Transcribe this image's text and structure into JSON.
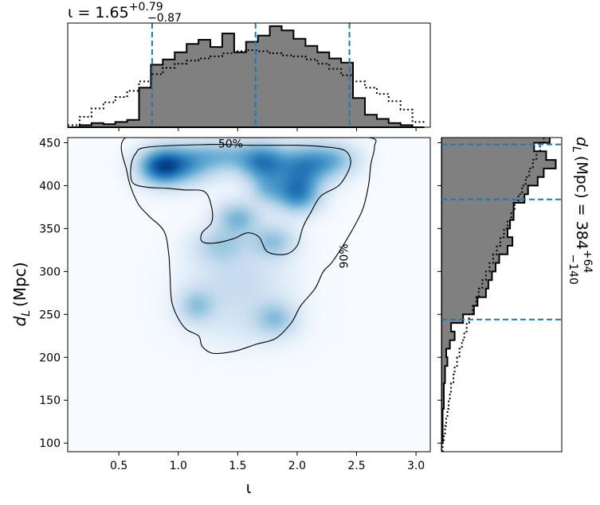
{
  "chart_data": [
    {
      "type": "heatmap",
      "panel": "joint",
      "xlabel": "ι",
      "ylabel_symbol": "d",
      "ylabel_sub": "L",
      "ylabel_unit": "(Mpc)",
      "xlim": [
        0.07,
        3.12
      ],
      "ylim": [
        90,
        456
      ],
      "xticks": [
        0.5,
        1.0,
        1.5,
        2.0,
        2.5,
        3.0
      ],
      "xtick_labels": [
        "0.5",
        "1.0",
        "1.5",
        "2.0",
        "2.5",
        "3.0"
      ],
      "yticks": [
        100,
        150,
        200,
        250,
        300,
        350,
        400,
        450
      ],
      "ytick_labels": [
        "100",
        "150",
        "200",
        "250",
        "300",
        "350",
        "400",
        "450"
      ],
      "colormap": "Blues",
      "density_peaks": [
        {
          "x": 0.85,
          "y": 422,
          "sigma_x": 0.13,
          "sigma_y": 14,
          "weight": 1.0
        },
        {
          "x": 1.05,
          "y": 425,
          "sigma_x": 0.18,
          "sigma_y": 16,
          "weight": 0.7
        },
        {
          "x": 1.4,
          "y": 435,
          "sigma_x": 0.2,
          "sigma_y": 13,
          "weight": 0.5
        },
        {
          "x": 1.72,
          "y": 426,
          "sigma_x": 0.14,
          "sigma_y": 16,
          "weight": 0.9
        },
        {
          "x": 2.05,
          "y": 422,
          "sigma_x": 0.15,
          "sigma_y": 17,
          "weight": 0.8
        },
        {
          "x": 2.3,
          "y": 430,
          "sigma_x": 0.15,
          "sigma_y": 14,
          "weight": 0.55
        },
        {
          "x": 2.0,
          "y": 390,
          "sigma_x": 0.13,
          "sigma_y": 15,
          "weight": 0.9
        },
        {
          "x": 1.5,
          "y": 362,
          "sigma_x": 0.13,
          "sigma_y": 14,
          "weight": 0.6
        },
        {
          "x": 1.8,
          "y": 335,
          "sigma_x": 0.13,
          "sigma_y": 14,
          "weight": 0.5
        },
        {
          "x": 1.35,
          "y": 330,
          "sigma_x": 0.16,
          "sigma_y": 14,
          "weight": 0.4
        },
        {
          "x": 1.5,
          "y": 290,
          "sigma_x": 0.28,
          "sigma_y": 25,
          "weight": 0.28
        },
        {
          "x": 1.75,
          "y": 395,
          "sigma_x": 0.1,
          "sigma_y": 12,
          "weight": 0.4
        },
        {
          "x": 1.15,
          "y": 260,
          "sigma_x": 0.11,
          "sigma_y": 14,
          "weight": 0.45
        },
        {
          "x": 1.82,
          "y": 245,
          "sigma_x": 0.12,
          "sigma_y": 14,
          "weight": 0.45
        },
        {
          "x": 1.55,
          "y": 240,
          "sigma_x": 0.3,
          "sigma_y": 22,
          "weight": 0.15
        }
      ],
      "contours": [
        {
          "label": "50%",
          "label_x": 1.44,
          "label_y": 448,
          "label_angle": 0,
          "points": [
            [
              0.75,
              445
            ],
            [
              1.3,
              448
            ],
            [
              1.6,
              447
            ],
            [
              2.0,
              447
            ],
            [
              2.25,
              445
            ],
            [
              2.4,
              441
            ],
            [
              2.45,
              430
            ],
            [
              2.43,
              417
            ],
            [
              2.35,
              400
            ],
            [
              2.2,
              388
            ],
            [
              2.12,
              370
            ],
            [
              2.05,
              352
            ],
            [
              2.0,
              330
            ],
            [
              1.9,
              320
            ],
            [
              1.75,
              323
            ],
            [
              1.68,
              340
            ],
            [
              1.58,
              345
            ],
            [
              1.46,
              338
            ],
            [
              1.3,
              333
            ],
            [
              1.2,
              335
            ],
            [
              1.2,
              345
            ],
            [
              1.28,
              357
            ],
            [
              1.28,
              375
            ],
            [
              1.22,
              393
            ],
            [
              1.05,
              395
            ],
            [
              0.9,
              397
            ],
            [
              0.75,
              398
            ],
            [
              0.62,
              403
            ],
            [
              0.6,
              420
            ],
            [
              0.64,
              437
            ],
            [
              0.75,
              445
            ]
          ]
        },
        {
          "label": "90%",
          "label_x": 2.4,
          "label_y": 318,
          "label_angle": -90,
          "points": [
            [
              0.57,
              457
            ],
            [
              1.2,
              456
            ],
            [
              2.0,
              456
            ],
            [
              2.6,
              456
            ],
            [
              2.65,
              445
            ],
            [
              2.62,
              425
            ],
            [
              2.6,
              400
            ],
            [
              2.55,
              372
            ],
            [
              2.45,
              345
            ],
            [
              2.3,
              312
            ],
            [
              2.22,
              300
            ],
            [
              2.15,
              280
            ],
            [
              2.03,
              260
            ],
            [
              1.95,
              240
            ],
            [
              1.82,
              222
            ],
            [
              1.65,
              215
            ],
            [
              1.5,
              208
            ],
            [
              1.38,
              205
            ],
            [
              1.28,
              205
            ],
            [
              1.2,
              213
            ],
            [
              1.17,
              225
            ],
            [
              1.05,
              235
            ],
            [
              0.95,
              262
            ],
            [
              0.93,
              298
            ],
            [
              0.92,
              320
            ],
            [
              0.88,
              347
            ],
            [
              0.75,
              365
            ],
            [
              0.65,
              382
            ],
            [
              0.57,
              415
            ],
            [
              0.57,
              457
            ]
          ]
        }
      ]
    },
    {
      "type": "bar",
      "panel": "top-marginal",
      "title_prefix": "ι = 1.65",
      "title_sup": "+0.79",
      "title_sub": "−0.87",
      "histtype": "step-filled",
      "fill_color": "#808080",
      "bin_edges": [
        0.07,
        0.17,
        0.27,
        0.37,
        0.47,
        0.57,
        0.67,
        0.77,
        0.87,
        0.97,
        1.07,
        1.17,
        1.27,
        1.37,
        1.47,
        1.57,
        1.67,
        1.77,
        1.87,
        1.97,
        2.07,
        2.17,
        2.27,
        2.37,
        2.47,
        2.57,
        2.67,
        2.77,
        2.87,
        2.97,
        3.07
      ],
      "values": [
        0.0,
        0.02,
        0.04,
        0.03,
        0.05,
        0.07,
        0.38,
        0.6,
        0.65,
        0.72,
        0.8,
        0.84,
        0.77,
        0.9,
        0.72,
        0.82,
        0.88,
        0.97,
        0.93,
        0.85,
        0.78,
        0.72,
        0.66,
        0.62,
        0.28,
        0.12,
        0.08,
        0.04,
        0.02,
        0.0
      ],
      "prior_values": [
        0.02,
        0.1,
        0.18,
        0.24,
        0.29,
        0.35,
        0.44,
        0.51,
        0.57,
        0.61,
        0.64,
        0.66,
        0.68,
        0.71,
        0.73,
        0.74,
        0.73,
        0.71,
        0.69,
        0.68,
        0.65,
        0.61,
        0.56,
        0.5,
        0.44,
        0.38,
        0.32,
        0.25,
        0.17,
        0.05
      ],
      "quantile_lines": [
        0.78,
        1.65,
        2.44
      ],
      "line_color": "#1f77b4"
    },
    {
      "type": "bar",
      "panel": "right-marginal",
      "orientation": "horizontal",
      "title_prefix": "d",
      "title_symbol_sub": "L",
      "title_unit": "(Mpc) = 384",
      "title_sup": "+64",
      "title_sub": "−140",
      "histtype": "step-filled",
      "fill_color": "#808080",
      "bin_edges": [
        90,
        100,
        110,
        120,
        130,
        140,
        150,
        160,
        170,
        180,
        190,
        200,
        210,
        220,
        230,
        240,
        250,
        260,
        270,
        280,
        290,
        300,
        310,
        320,
        330,
        340,
        350,
        360,
        370,
        380,
        390,
        400,
        410,
        420,
        430,
        440,
        450,
        460
      ],
      "values": [
        0.0,
        0.01,
        0.01,
        0.01,
        0.01,
        0.02,
        0.02,
        0.02,
        0.03,
        0.03,
        0.05,
        0.04,
        0.07,
        0.11,
        0.08,
        0.18,
        0.27,
        0.3,
        0.37,
        0.39,
        0.42,
        0.45,
        0.48,
        0.55,
        0.59,
        0.55,
        0.57,
        0.6,
        0.6,
        0.69,
        0.72,
        0.8,
        0.85,
        0.95,
        0.87,
        0.77,
        0.9
      ],
      "prior_values": [
        0.01,
        0.02,
        0.03,
        0.04,
        0.05,
        0.06,
        0.07,
        0.08,
        0.1,
        0.11,
        0.13,
        0.15,
        0.17,
        0.19,
        0.21,
        0.23,
        0.26,
        0.29,
        0.31,
        0.34,
        0.37,
        0.4,
        0.43,
        0.46,
        0.49,
        0.52,
        0.55,
        0.58,
        0.61,
        0.64,
        0.67,
        0.7,
        0.73,
        0.76,
        0.79,
        0.82,
        0.85
      ],
      "quantile_lines": [
        244,
        384,
        448
      ],
      "line_color": "#1f77b4"
    }
  ]
}
